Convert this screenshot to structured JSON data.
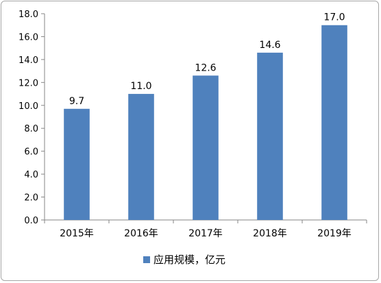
{
  "chart_data": {
    "type": "bar",
    "categories": [
      "2015年",
      "2016年",
      "2017年",
      "2018年",
      "2019年"
    ],
    "series": [
      {
        "name": "应用规模，亿元",
        "values": [
          9.7,
          11.0,
          12.6,
          14.6,
          17.0
        ],
        "value_labels": [
          "9.7",
          "11.0",
          "12.6",
          "14.6",
          "17.0"
        ],
        "color": "#4f81bd"
      }
    ],
    "title": "",
    "xlabel": "",
    "ylabel": "",
    "ylim": [
      0,
      18
    ],
    "yticks": [
      0,
      2,
      4,
      6,
      8,
      10,
      12,
      14,
      16,
      18
    ],
    "ytick_labels": [
      "0.0",
      "2.0",
      "4.0",
      "6.0",
      "8.0",
      "10.0",
      "12.0",
      "14.0",
      "16.0",
      "18.0"
    ],
    "grid": false,
    "legend_position": "bottom"
  }
}
